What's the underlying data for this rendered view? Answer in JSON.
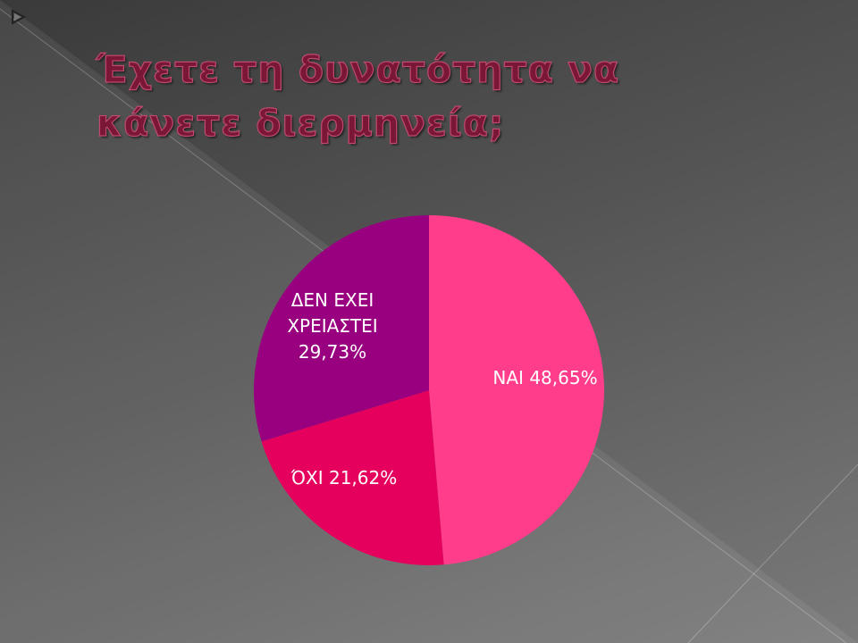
{
  "chart_data": {
    "type": "pie",
    "title": "Έχετε τη δυνατότητα να κάνετε διερμηνεία;",
    "categories": [
      "ΝΑΙ",
      "ΌΧΙ",
      "ΔΕΝ ΕΧΕΙ ΧΡΕΙΑΣΤΕΙ"
    ],
    "values": [
      48.65,
      21.62,
      29.73
    ],
    "value_labels": [
      "48,65%",
      "21,62%",
      "29,73%"
    ],
    "colors": [
      "#ff3d8b",
      "#e6005e",
      "#990080"
    ]
  }
}
